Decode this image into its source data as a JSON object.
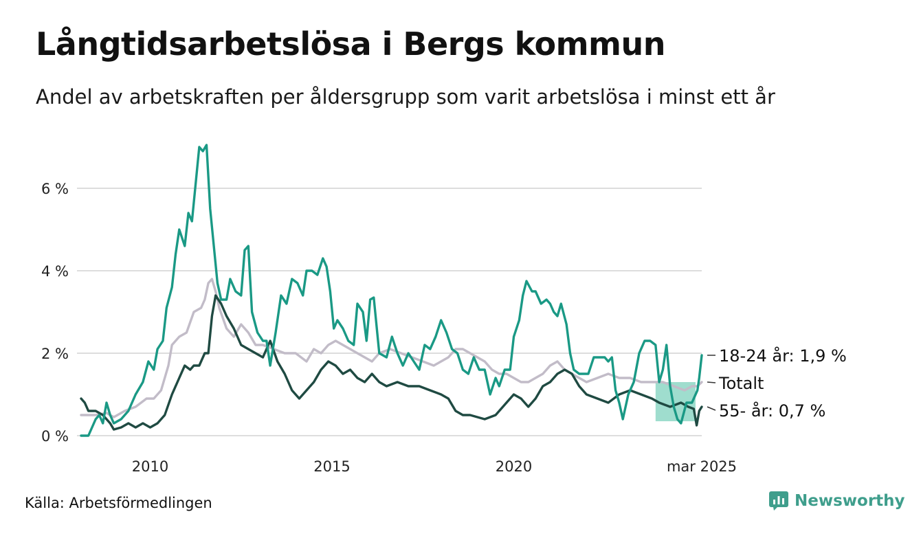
{
  "header": {
    "title": "Långtidsarbetslösa i Bergs kommun",
    "subtitle": "Andel av arbetskraften per åldersgrupp som varit arbetslösa i minst ett år"
  },
  "footer": {
    "source": "Källa: Arbetsförmedlingen",
    "brand": "Newsworthy"
  },
  "colors": {
    "young": "#1a9985",
    "old": "#1f4a42",
    "total": "#c2bcc8",
    "band": "#7fd1bd",
    "grid": "#dddddd"
  },
  "chart_data": {
    "type": "line",
    "x_ticks": [
      {
        "x": 2010,
        "label": "2010"
      },
      {
        "x": 2015,
        "label": "2015"
      },
      {
        "x": 2020,
        "label": "2020"
      },
      {
        "x": 2025.17,
        "label": "mar 2025"
      }
    ],
    "y_ticks": [
      {
        "y": 0,
        "label": "0 %"
      },
      {
        "y": 2,
        "label": "2 %"
      },
      {
        "y": 4,
        "label": "4 %"
      },
      {
        "y": 6,
        "label": "6 %"
      }
    ],
    "xlim": [
      2008.1,
      2025.17
    ],
    "ylim": [
      0,
      7.2
    ],
    "grid": true,
    "range_band": {
      "x": [
        2023.9,
        2025.0
      ],
      "y": [
        0.35,
        1.3
      ]
    },
    "series": [
      {
        "name": "Totalt",
        "key": "total",
        "end_label": "Totalt",
        "points": [
          [
            2008.1,
            0.5
          ],
          [
            2008.5,
            0.5
          ],
          [
            2008.8,
            0.55
          ],
          [
            2009.0,
            0.45
          ],
          [
            2009.3,
            0.6
          ],
          [
            2009.6,
            0.7
          ],
          [
            2009.9,
            0.9
          ],
          [
            2010.1,
            0.9
          ],
          [
            2010.3,
            1.1
          ],
          [
            2010.5,
            1.7
          ],
          [
            2010.6,
            2.2
          ],
          [
            2010.8,
            2.4
          ],
          [
            2011.0,
            2.5
          ],
          [
            2011.2,
            3.0
          ],
          [
            2011.4,
            3.1
          ],
          [
            2011.5,
            3.3
          ],
          [
            2011.6,
            3.7
          ],
          [
            2011.7,
            3.8
          ],
          [
            2011.8,
            3.5
          ],
          [
            2011.9,
            3.1
          ],
          [
            2012.1,
            2.6
          ],
          [
            2012.3,
            2.4
          ],
          [
            2012.5,
            2.7
          ],
          [
            2012.7,
            2.5
          ],
          [
            2012.9,
            2.2
          ],
          [
            2013.1,
            2.2
          ],
          [
            2013.4,
            2.1
          ],
          [
            2013.7,
            2.0
          ],
          [
            2014.0,
            2.0
          ],
          [
            2014.3,
            1.8
          ],
          [
            2014.5,
            2.1
          ],
          [
            2014.7,
            2.0
          ],
          [
            2014.9,
            2.2
          ],
          [
            2015.1,
            2.3
          ],
          [
            2015.3,
            2.2
          ],
          [
            2015.5,
            2.1
          ],
          [
            2015.7,
            2.0
          ],
          [
            2015.9,
            1.9
          ],
          [
            2016.1,
            1.8
          ],
          [
            2016.3,
            2.0
          ],
          [
            2016.6,
            2.1
          ],
          [
            2016.9,
            2.0
          ],
          [
            2017.2,
            1.9
          ],
          [
            2017.5,
            1.8
          ],
          [
            2017.8,
            1.7
          ],
          [
            2018.0,
            1.8
          ],
          [
            2018.2,
            1.9
          ],
          [
            2018.4,
            2.1
          ],
          [
            2018.6,
            2.1
          ],
          [
            2018.8,
            2.0
          ],
          [
            2019.0,
            1.9
          ],
          [
            2019.2,
            1.8
          ],
          [
            2019.4,
            1.6
          ],
          [
            2019.6,
            1.5
          ],
          [
            2019.8,
            1.5
          ],
          [
            2020.0,
            1.4
          ],
          [
            2020.2,
            1.3
          ],
          [
            2020.4,
            1.3
          ],
          [
            2020.6,
            1.4
          ],
          [
            2020.8,
            1.5
          ],
          [
            2021.0,
            1.7
          ],
          [
            2021.2,
            1.8
          ],
          [
            2021.4,
            1.6
          ],
          [
            2021.6,
            1.5
          ],
          [
            2021.8,
            1.4
          ],
          [
            2022.0,
            1.3
          ],
          [
            2022.3,
            1.4
          ],
          [
            2022.6,
            1.5
          ],
          [
            2022.9,
            1.4
          ],
          [
            2023.2,
            1.4
          ],
          [
            2023.5,
            1.3
          ],
          [
            2023.8,
            1.3
          ],
          [
            2024.1,
            1.3
          ],
          [
            2024.4,
            1.2
          ],
          [
            2024.7,
            1.1
          ],
          [
            2024.9,
            1.2
          ],
          [
            2025.05,
            1.2
          ],
          [
            2025.17,
            1.3
          ]
        ]
      },
      {
        "name": "55- år",
        "key": "old",
        "end_label": "55- år: 0,7 %",
        "points": [
          [
            2008.1,
            0.9
          ],
          [
            2008.2,
            0.8
          ],
          [
            2008.3,
            0.6
          ],
          [
            2008.5,
            0.6
          ],
          [
            2008.7,
            0.5
          ],
          [
            2008.9,
            0.3
          ],
          [
            2009.0,
            0.15
          ],
          [
            2009.2,
            0.2
          ],
          [
            2009.4,
            0.3
          ],
          [
            2009.6,
            0.2
          ],
          [
            2009.8,
            0.3
          ],
          [
            2010.0,
            0.2
          ],
          [
            2010.2,
            0.3
          ],
          [
            2010.4,
            0.5
          ],
          [
            2010.6,
            1.0
          ],
          [
            2010.8,
            1.4
          ],
          [
            2010.95,
            1.7
          ],
          [
            2011.1,
            1.6
          ],
          [
            2011.2,
            1.7
          ],
          [
            2011.35,
            1.7
          ],
          [
            2011.5,
            2.0
          ],
          [
            2011.6,
            2.0
          ],
          [
            2011.7,
            2.9
          ],
          [
            2011.8,
            3.4
          ],
          [
            2011.95,
            3.2
          ],
          [
            2012.1,
            2.9
          ],
          [
            2012.3,
            2.6
          ],
          [
            2012.5,
            2.2
          ],
          [
            2012.7,
            2.1
          ],
          [
            2012.9,
            2.0
          ],
          [
            2013.1,
            1.9
          ],
          [
            2013.3,
            2.3
          ],
          [
            2013.5,
            1.8
          ],
          [
            2013.7,
            1.5
          ],
          [
            2013.9,
            1.1
          ],
          [
            2014.1,
            0.9
          ],
          [
            2014.3,
            1.1
          ],
          [
            2014.5,
            1.3
          ],
          [
            2014.7,
            1.6
          ],
          [
            2014.9,
            1.8
          ],
          [
            2015.1,
            1.7
          ],
          [
            2015.3,
            1.5
          ],
          [
            2015.5,
            1.6
          ],
          [
            2015.7,
            1.4
          ],
          [
            2015.9,
            1.3
          ],
          [
            2016.1,
            1.5
          ],
          [
            2016.3,
            1.3
          ],
          [
            2016.5,
            1.2
          ],
          [
            2016.8,
            1.3
          ],
          [
            2017.1,
            1.2
          ],
          [
            2017.4,
            1.2
          ],
          [
            2017.7,
            1.1
          ],
          [
            2018.0,
            1.0
          ],
          [
            2018.2,
            0.9
          ],
          [
            2018.4,
            0.6
          ],
          [
            2018.6,
            0.5
          ],
          [
            2018.8,
            0.5
          ],
          [
            2019.0,
            0.45
          ],
          [
            2019.2,
            0.4
          ],
          [
            2019.5,
            0.5
          ],
          [
            2019.8,
            0.8
          ],
          [
            2020.0,
            1.0
          ],
          [
            2020.2,
            0.9
          ],
          [
            2020.4,
            0.7
          ],
          [
            2020.6,
            0.9
          ],
          [
            2020.8,
            1.2
          ],
          [
            2021.0,
            1.3
          ],
          [
            2021.2,
            1.5
          ],
          [
            2021.4,
            1.6
          ],
          [
            2021.6,
            1.5
          ],
          [
            2021.8,
            1.2
          ],
          [
            2022.0,
            1.0
          ],
          [
            2022.3,
            0.9
          ],
          [
            2022.6,
            0.8
          ],
          [
            2022.9,
            1.0
          ],
          [
            2023.2,
            1.1
          ],
          [
            2023.5,
            1.0
          ],
          [
            2023.8,
            0.9
          ],
          [
            2024.0,
            0.8
          ],
          [
            2024.3,
            0.7
          ],
          [
            2024.6,
            0.8
          ],
          [
            2024.8,
            0.7
          ],
          [
            2024.95,
            0.65
          ],
          [
            2025.03,
            0.25
          ],
          [
            2025.1,
            0.6
          ],
          [
            2025.17,
            0.7
          ]
        ]
      },
      {
        "name": "18-24 år",
        "key": "young",
        "end_label": "18-24 år: 1,9 %",
        "points": [
          [
            2008.1,
            0.0
          ],
          [
            2008.3,
            0.0
          ],
          [
            2008.5,
            0.4
          ],
          [
            2008.6,
            0.5
          ],
          [
            2008.7,
            0.3
          ],
          [
            2008.8,
            0.8
          ],
          [
            2008.9,
            0.5
          ],
          [
            2009.0,
            0.3
          ],
          [
            2009.2,
            0.4
          ],
          [
            2009.4,
            0.6
          ],
          [
            2009.6,
            1.0
          ],
          [
            2009.8,
            1.3
          ],
          [
            2009.95,
            1.8
          ],
          [
            2010.1,
            1.6
          ],
          [
            2010.2,
            2.1
          ],
          [
            2010.35,
            2.3
          ],
          [
            2010.45,
            3.1
          ],
          [
            2010.6,
            3.6
          ],
          [
            2010.7,
            4.4
          ],
          [
            2010.8,
            5.0
          ],
          [
            2010.95,
            4.6
          ],
          [
            2011.05,
            5.4
          ],
          [
            2011.15,
            5.2
          ],
          [
            2011.25,
            6.1
          ],
          [
            2011.35,
            7.0
          ],
          [
            2011.45,
            6.9
          ],
          [
            2011.55,
            7.05
          ],
          [
            2011.65,
            5.5
          ],
          [
            2011.75,
            4.6
          ],
          [
            2011.85,
            3.7
          ],
          [
            2011.95,
            3.3
          ],
          [
            2012.1,
            3.3
          ],
          [
            2012.2,
            3.8
          ],
          [
            2012.35,
            3.5
          ],
          [
            2012.5,
            3.4
          ],
          [
            2012.6,
            4.5
          ],
          [
            2012.7,
            4.6
          ],
          [
            2012.8,
            3.0
          ],
          [
            2012.95,
            2.5
          ],
          [
            2013.1,
            2.3
          ],
          [
            2013.2,
            2.3
          ],
          [
            2013.3,
            1.7
          ],
          [
            2013.45,
            2.5
          ],
          [
            2013.6,
            3.4
          ],
          [
            2013.75,
            3.2
          ],
          [
            2013.9,
            3.8
          ],
          [
            2014.05,
            3.7
          ],
          [
            2014.2,
            3.4
          ],
          [
            2014.3,
            4.0
          ],
          [
            2014.45,
            4.0
          ],
          [
            2014.6,
            3.9
          ],
          [
            2014.75,
            4.3
          ],
          [
            2014.85,
            4.1
          ],
          [
            2014.95,
            3.5
          ],
          [
            2015.05,
            2.6
          ],
          [
            2015.15,
            2.8
          ],
          [
            2015.3,
            2.6
          ],
          [
            2015.45,
            2.3
          ],
          [
            2015.6,
            2.2
          ],
          [
            2015.7,
            3.2
          ],
          [
            2015.85,
            3.0
          ],
          [
            2015.95,
            2.3
          ],
          [
            2016.05,
            3.3
          ],
          [
            2016.15,
            3.35
          ],
          [
            2016.3,
            2.0
          ],
          [
            2016.5,
            1.9
          ],
          [
            2016.65,
            2.4
          ],
          [
            2016.8,
            2.0
          ],
          [
            2016.95,
            1.7
          ],
          [
            2017.1,
            2.0
          ],
          [
            2017.25,
            1.8
          ],
          [
            2017.4,
            1.6
          ],
          [
            2017.55,
            2.2
          ],
          [
            2017.7,
            2.1
          ],
          [
            2017.85,
            2.4
          ],
          [
            2018.0,
            2.8
          ],
          [
            2018.15,
            2.5
          ],
          [
            2018.3,
            2.1
          ],
          [
            2018.45,
            2.0
          ],
          [
            2018.6,
            1.6
          ],
          [
            2018.75,
            1.5
          ],
          [
            2018.9,
            1.9
          ],
          [
            2019.05,
            1.6
          ],
          [
            2019.2,
            1.6
          ],
          [
            2019.35,
            1.0
          ],
          [
            2019.5,
            1.4
          ],
          [
            2019.6,
            1.2
          ],
          [
            2019.75,
            1.6
          ],
          [
            2019.9,
            1.6
          ],
          [
            2020.0,
            2.4
          ],
          [
            2020.15,
            2.8
          ],
          [
            2020.25,
            3.4
          ],
          [
            2020.35,
            3.75
          ],
          [
            2020.5,
            3.5
          ],
          [
            2020.6,
            3.5
          ],
          [
            2020.75,
            3.2
          ],
          [
            2020.9,
            3.3
          ],
          [
            2021.0,
            3.2
          ],
          [
            2021.1,
            3.0
          ],
          [
            2021.2,
            2.9
          ],
          [
            2021.3,
            3.2
          ],
          [
            2021.45,
            2.7
          ],
          [
            2021.55,
            2.0
          ],
          [
            2021.65,
            1.6
          ],
          [
            2021.8,
            1.5
          ],
          [
            2021.95,
            1.5
          ],
          [
            2022.05,
            1.5
          ],
          [
            2022.2,
            1.9
          ],
          [
            2022.35,
            1.9
          ],
          [
            2022.5,
            1.9
          ],
          [
            2022.6,
            1.8
          ],
          [
            2022.7,
            1.9
          ],
          [
            2022.8,
            1.1
          ],
          [
            2022.9,
            0.8
          ],
          [
            2023.0,
            0.4
          ],
          [
            2023.15,
            1.0
          ],
          [
            2023.3,
            1.3
          ],
          [
            2023.45,
            2.0
          ],
          [
            2023.6,
            2.3
          ],
          [
            2023.75,
            2.3
          ],
          [
            2023.9,
            2.2
          ],
          [
            2024.0,
            1.3
          ],
          [
            2024.1,
            1.6
          ],
          [
            2024.2,
            2.2
          ],
          [
            2024.3,
            1.2
          ],
          [
            2024.4,
            0.7
          ],
          [
            2024.5,
            0.4
          ],
          [
            2024.6,
            0.3
          ],
          [
            2024.75,
            0.8
          ],
          [
            2024.9,
            0.8
          ],
          [
            2025.05,
            1.1
          ],
          [
            2025.1,
            1.4
          ],
          [
            2025.17,
            1.95
          ]
        ]
      }
    ]
  }
}
